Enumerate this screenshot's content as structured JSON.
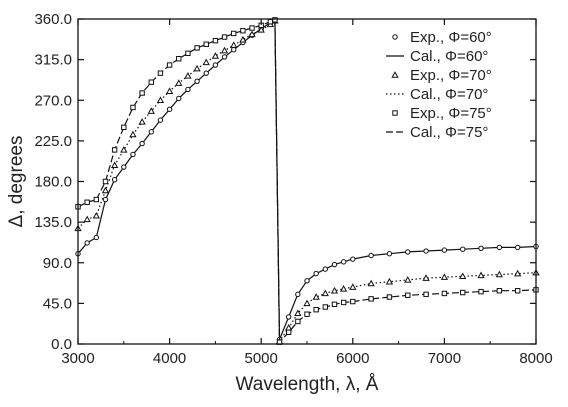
{
  "chart_data": {
    "type": "line",
    "xlabel": "Wavelength, λ, Å",
    "ylabel": "Δ, degrees",
    "xlim": [
      3000,
      8000
    ],
    "ylim": [
      0,
      360
    ],
    "xticks": [
      "3000",
      "4000",
      "5000",
      "6000",
      "7000",
      "8000"
    ],
    "yticks": [
      "0.0",
      "45.0",
      "90.0",
      "135.0",
      "180.0",
      "225.0",
      "270.0",
      "315.0",
      "360.0"
    ],
    "grid": false,
    "legend_position": "top-right",
    "series": [
      {
        "name": "Exp., Φ=60°",
        "kind": "markers",
        "marker": "circle",
        "x": [
          3000,
          3100,
          3200,
          3300,
          3400,
          3500,
          3600,
          3700,
          3800,
          3900,
          4000,
          4100,
          4200,
          4300,
          4400,
          4500,
          4600,
          4700,
          4800,
          4900,
          5000,
          5100,
          5150,
          5200,
          5300,
          5400,
          5500,
          5600,
          5700,
          5800,
          5900,
          6000,
          6200,
          6400,
          6600,
          6800,
          7000,
          7200,
          7400,
          7600,
          7800,
          8000
        ],
        "y": [
          100,
          112,
          118,
          160,
          182,
          196,
          210,
          222,
          235,
          248,
          260,
          272,
          282,
          291,
          300,
          309,
          318,
          326,
          334,
          342,
          349,
          356,
          359,
          5,
          30,
          55,
          70,
          78,
          83,
          88,
          91,
          94,
          98,
          100,
          102,
          103,
          104,
          105,
          106,
          107,
          107,
          108
        ]
      },
      {
        "name": "Cal., Φ=60°",
        "kind": "line",
        "dash": "solid",
        "x": [
          3000,
          3100,
          3200,
          3300,
          3400,
          3500,
          3600,
          3700,
          3800,
          3900,
          4000,
          4100,
          4200,
          4300,
          4400,
          4500,
          4600,
          4700,
          4800,
          4900,
          5000,
          5100,
          5150,
          5200,
          5300,
          5400,
          5500,
          5600,
          5700,
          5800,
          5900,
          6000,
          6200,
          6400,
          6600,
          6800,
          7000,
          7200,
          7400,
          7600,
          7800,
          8000
        ],
        "y": [
          100,
          112,
          118,
          160,
          182,
          196,
          210,
          222,
          235,
          248,
          260,
          272,
          282,
          291,
          300,
          309,
          318,
          326,
          334,
          342,
          349,
          356,
          359,
          5,
          30,
          55,
          70,
          78,
          83,
          88,
          91,
          94,
          98,
          100,
          102,
          103,
          104,
          105,
          106,
          107,
          107,
          108
        ]
      },
      {
        "name": "Exp., Φ=70°",
        "kind": "markers",
        "marker": "triangle",
        "x": [
          3000,
          3100,
          3200,
          3300,
          3400,
          3500,
          3600,
          3700,
          3800,
          3900,
          4000,
          4100,
          4200,
          4300,
          4400,
          4500,
          4600,
          4700,
          4800,
          4900,
          5000,
          5100,
          5150,
          5200,
          5300,
          5400,
          5500,
          5600,
          5700,
          5800,
          5900,
          6000,
          6200,
          6400,
          6600,
          6800,
          7000,
          7200,
          7400,
          7600,
          7800,
          8000
        ],
        "y": [
          128,
          138,
          142,
          170,
          198,
          215,
          232,
          246,
          258,
          270,
          280,
          289,
          297,
          305,
          312,
          319,
          325,
          331,
          337,
          343,
          348,
          354,
          358,
          3,
          18,
          34,
          45,
          52,
          56,
          59,
          61,
          63,
          67,
          69,
          71,
          73,
          74,
          75,
          76,
          77,
          78,
          79
        ]
      },
      {
        "name": "Cal., Φ=70°",
        "kind": "line",
        "dash": "dotted",
        "x": [
          3000,
          3100,
          3200,
          3300,
          3400,
          3500,
          3600,
          3700,
          3800,
          3900,
          4000,
          4100,
          4200,
          4300,
          4400,
          4500,
          4600,
          4700,
          4800,
          4900,
          5000,
          5100,
          5150,
          5200,
          5300,
          5400,
          5500,
          5600,
          5700,
          5800,
          5900,
          6000,
          6200,
          6400,
          6600,
          6800,
          7000,
          7200,
          7400,
          7600,
          7800,
          8000
        ],
        "y": [
          128,
          138,
          142,
          170,
          198,
          215,
          232,
          246,
          258,
          270,
          280,
          289,
          297,
          305,
          312,
          319,
          325,
          331,
          337,
          343,
          348,
          354,
          358,
          3,
          18,
          34,
          45,
          52,
          56,
          59,
          61,
          63,
          67,
          69,
          71,
          73,
          74,
          75,
          76,
          77,
          78,
          79
        ]
      },
      {
        "name": "Exp., Φ=75°",
        "kind": "markers",
        "marker": "square",
        "x": [
          3000,
          3100,
          3200,
          3300,
          3400,
          3500,
          3600,
          3700,
          3800,
          3900,
          4000,
          4100,
          4200,
          4300,
          4400,
          4500,
          4600,
          4700,
          4800,
          4900,
          5000,
          5100,
          5150,
          5200,
          5300,
          5400,
          5500,
          5600,
          5700,
          5800,
          5900,
          6000,
          6200,
          6400,
          6600,
          6800,
          7000,
          7200,
          7400,
          7600,
          7800,
          8000
        ],
        "y": [
          152,
          157,
          160,
          180,
          215,
          240,
          262,
          278,
          290,
          300,
          309,
          316,
          322,
          328,
          332,
          336,
          340,
          344,
          347,
          350,
          353,
          357,
          359,
          2,
          13,
          25,
          33,
          38,
          41,
          44,
          46,
          47,
          50,
          52,
          54,
          55,
          56,
          57,
          58,
          59,
          59,
          60
        ]
      },
      {
        "name": "Cal., Φ=75°",
        "kind": "line",
        "dash": "dashed",
        "x": [
          3000,
          3100,
          3200,
          3300,
          3400,
          3500,
          3600,
          3700,
          3800,
          3900,
          4000,
          4100,
          4200,
          4300,
          4400,
          4500,
          4600,
          4700,
          4800,
          4900,
          5000,
          5100,
          5150,
          5200,
          5300,
          5400,
          5500,
          5600,
          5700,
          5800,
          5900,
          6000,
          6200,
          6400,
          6600,
          6800,
          7000,
          7200,
          7400,
          7600,
          7800,
          8000
        ],
        "y": [
          152,
          157,
          160,
          180,
          215,
          240,
          262,
          278,
          290,
          300,
          309,
          316,
          322,
          328,
          332,
          336,
          340,
          344,
          347,
          350,
          353,
          357,
          359,
          2,
          13,
          25,
          33,
          38,
          41,
          44,
          46,
          47,
          50,
          52,
          54,
          55,
          56,
          57,
          58,
          59,
          59,
          60
        ]
      }
    ]
  }
}
